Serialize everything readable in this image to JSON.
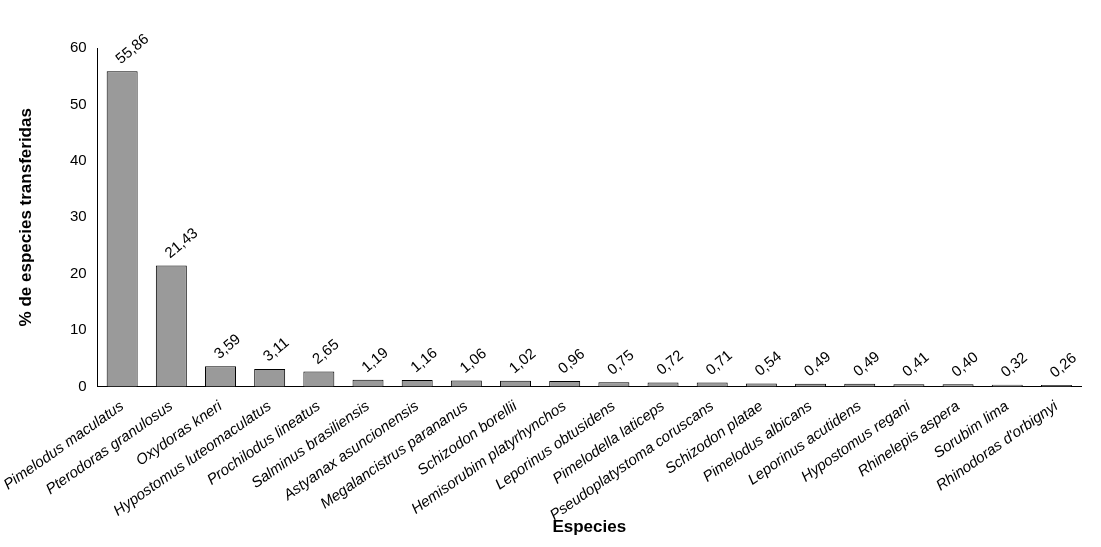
{
  "chart_data": {
    "type": "bar",
    "xlabel": "Especies",
    "ylabel": "% de especies transferidas",
    "categories": [
      "Pimelodus maculatus",
      "Pterodoras granulosus",
      "Oxydoras kneri",
      "Hypostomus luteomaculatus",
      "Prochilodus lineatus",
      "Salminus brasiliensis",
      "Astyanax asuncionensis",
      "Megalancistrus parananus",
      "Schizodon borellii",
      "Hemisorubim platyrhynchos",
      "Leporinus obtusidens",
      "Pimelodella laticeps",
      "Pseudoplatystoma coruscans",
      "Schizodon platae",
      "Pimelodus albicans",
      "Leporinus acutidens",
      "Hypostomus regani",
      "Rhinelepis aspera",
      "Sorubim lima",
      "Rhinodoras d'orbignyi"
    ],
    "values": [
      55.86,
      21.43,
      3.59,
      3.11,
      2.65,
      1.19,
      1.16,
      1.06,
      1.02,
      0.96,
      0.75,
      0.72,
      0.71,
      0.54,
      0.49,
      0.49,
      0.41,
      0.4,
      0.32,
      0.26
    ],
    "value_labels": [
      "55,86",
      "21,43",
      "3,59",
      "3,11",
      "2,65",
      "1,19",
      "1,16",
      "1,06",
      "1,02",
      "0,96",
      "0,75",
      "0,72",
      "0,71",
      "0,54",
      "0,49",
      "0,49",
      "0,41",
      "0,40",
      "0,32",
      "0,26"
    ],
    "color": "#9a9a9a",
    "ylim": [
      0,
      60
    ],
    "yticks": [
      0,
      10,
      20,
      30,
      40,
      50,
      60
    ],
    "grid": false,
    "legend": false
  }
}
